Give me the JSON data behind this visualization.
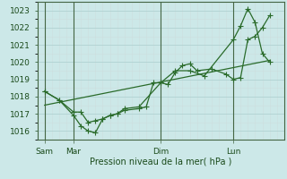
{
  "title": "Pression niveau de la mer( hPa )",
  "ylim": [
    1015.5,
    1023.5
  ],
  "yticks": [
    1016,
    1017,
    1018,
    1019,
    1020,
    1021,
    1022,
    1023
  ],
  "bg_color": "#cce8e8",
  "grid_color_major": "#aacece",
  "grid_color_minor": "#ccdede",
  "line_color": "#2a6b2a",
  "day_labels": [
    "Sam",
    "Mar",
    "Dim",
    "Lun"
  ],
  "day_positions": [
    0.5,
    2.5,
    8.5,
    13.5
  ],
  "vlines_x": [
    0.5,
    2.5,
    8.5,
    13.5
  ],
  "xlim": [
    0,
    17
  ],
  "line1_x": [
    0.5,
    1.5,
    2.5,
    3.0,
    3.5,
    4.0,
    4.5,
    5.0,
    5.5,
    6.0,
    7.0,
    7.5,
    8.0,
    8.5,
    9.0,
    9.5,
    10.0,
    10.5,
    11.0,
    12.0,
    13.0,
    13.5,
    14.0,
    14.5,
    15.0,
    15.5,
    16.0
  ],
  "line1_y": [
    1018.3,
    1017.8,
    1017.1,
    1017.1,
    1016.5,
    1016.6,
    1016.7,
    1016.9,
    1017.0,
    1017.2,
    1017.3,
    1017.4,
    1018.8,
    1018.8,
    1018.7,
    1019.4,
    1019.8,
    1019.9,
    1019.5,
    1019.6,
    1019.3,
    1019.0,
    1019.1,
    1021.3,
    1021.5,
    1022.0,
    1022.7
  ],
  "line2_x": [
    0.5,
    1.5,
    2.5,
    3.0,
    3.5,
    4.0,
    4.5,
    5.0,
    5.5,
    6.0,
    7.0,
    8.5,
    9.5,
    10.5,
    11.5,
    13.5,
    14.0,
    14.5,
    15.0,
    15.5,
    16.0
  ],
  "line2_y": [
    1018.3,
    1017.8,
    1016.9,
    1016.3,
    1016.0,
    1015.9,
    1016.7,
    1016.9,
    1017.0,
    1017.3,
    1017.4,
    1018.8,
    1019.5,
    1019.5,
    1019.2,
    1021.3,
    1022.1,
    1023.1,
    1022.3,
    1020.5,
    1020.0
  ],
  "line3_x": [
    0.5,
    16.0
  ],
  "line3_y": [
    1017.5,
    1020.1
  ],
  "marker": "+",
  "markersize": 4
}
